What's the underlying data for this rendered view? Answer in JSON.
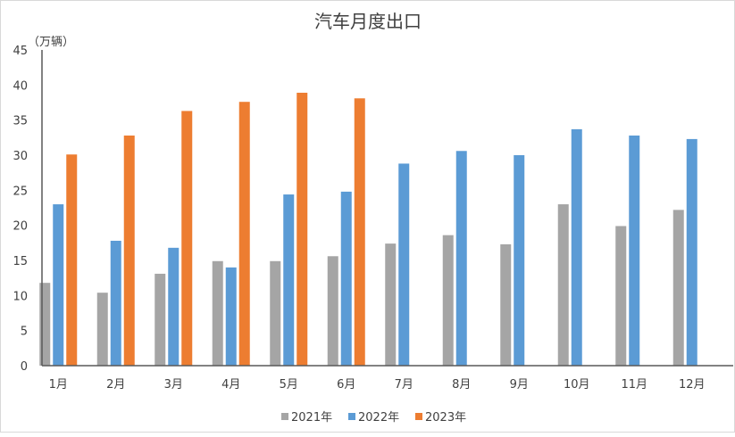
{
  "chart_data": {
    "type": "bar",
    "title": "汽车月度出口",
    "ylabel": "（万辆）",
    "xlabel": "",
    "ylim": [
      0,
      45
    ],
    "yticks": [
      0,
      5,
      10,
      15,
      20,
      25,
      30,
      35,
      40,
      45
    ],
    "grid": false,
    "legend_position": "bottom",
    "categories": [
      "1月",
      "2月",
      "3月",
      "4月",
      "5月",
      "6月",
      "7月",
      "8月",
      "9月",
      "10月",
      "11月",
      "12月"
    ],
    "series": [
      {
        "name": "2021年",
        "color": "#a5a5a5",
        "values": [
          11.8,
          10.4,
          13.1,
          14.9,
          14.9,
          15.6,
          17.4,
          18.6,
          17.3,
          23.0,
          19.9,
          22.2
        ]
      },
      {
        "name": "2022年",
        "color": "#5b9bd5",
        "values": [
          23.0,
          17.8,
          16.8,
          14.0,
          24.4,
          24.8,
          28.8,
          30.6,
          30.0,
          33.7,
          32.8,
          32.3
        ]
      },
      {
        "name": "2023年",
        "color": "#ed7d31",
        "values": [
          30.1,
          32.8,
          36.3,
          37.6,
          38.9,
          38.1,
          null,
          null,
          null,
          null,
          null,
          null
        ]
      }
    ]
  }
}
